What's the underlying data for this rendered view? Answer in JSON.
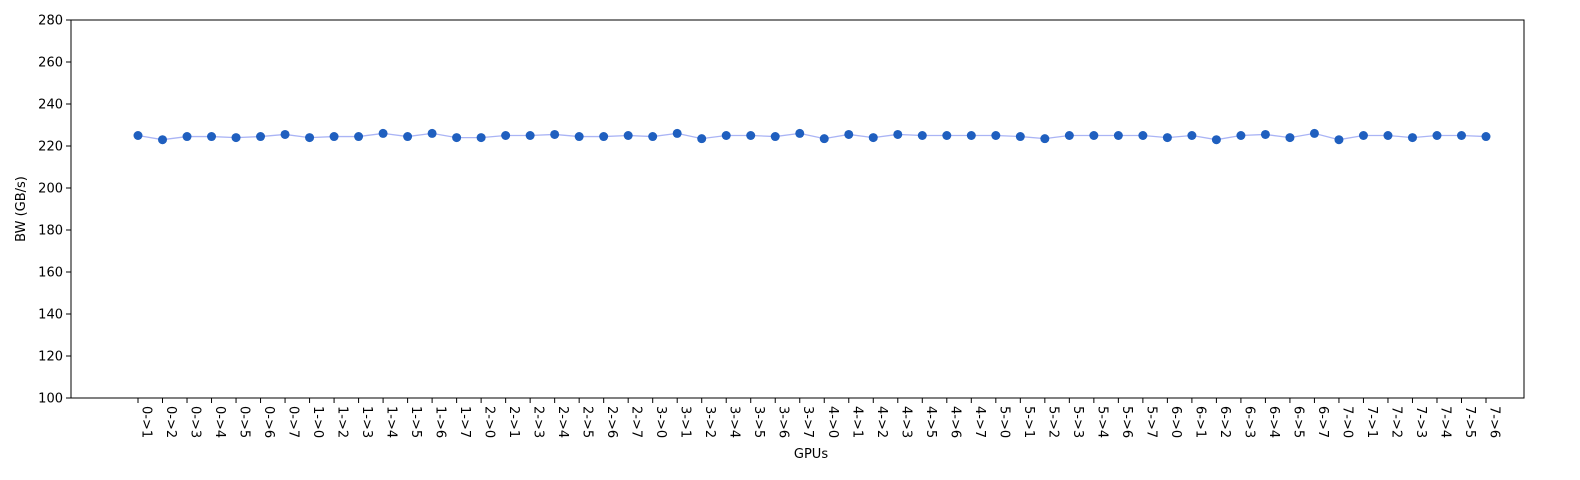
{
  "chart_data": {
    "type": "line",
    "title": "",
    "xlabel": "GPUs",
    "ylabel": "BW (GB/s)",
    "ylim": [
      100,
      280
    ],
    "yticks": [
      100,
      120,
      140,
      160,
      180,
      200,
      220,
      240,
      260,
      280
    ],
    "grid": false,
    "categories": [
      "0->1",
      "0->2",
      "0->3",
      "0->4",
      "0->5",
      "0->6",
      "0->7",
      "1->0",
      "1->2",
      "1->3",
      "1->4",
      "1->5",
      "1->6",
      "1->7",
      "2->0",
      "2->1",
      "2->3",
      "2->4",
      "2->5",
      "2->6",
      "2->7",
      "3->0",
      "3->1",
      "3->2",
      "3->4",
      "3->5",
      "3->6",
      "3->7",
      "4->0",
      "4->1",
      "4->2",
      "4->3",
      "4->5",
      "4->6",
      "4->7",
      "5->0",
      "5->1",
      "5->2",
      "5->3",
      "5->4",
      "5->6",
      "5->7",
      "6->0",
      "6->1",
      "6->2",
      "6->3",
      "6->4",
      "6->5",
      "6->7",
      "7->0",
      "7->1",
      "7->2",
      "7->3",
      "7->4",
      "7->5",
      "7->6"
    ],
    "series": [
      {
        "values": [
          225.0,
          223.0,
          224.5,
          224.5,
          224.0,
          224.5,
          225.5,
          224.0,
          224.5,
          224.5,
          226.0,
          224.5,
          226.0,
          224.0,
          224.0,
          225.0,
          225.0,
          225.5,
          224.5,
          224.5,
          225.0,
          224.5,
          226.0,
          223.5,
          225.0,
          225.0,
          224.5,
          226.0,
          223.5,
          225.5,
          224.0,
          225.5,
          225.0,
          225.0,
          225.0,
          225.0,
          224.5,
          223.5,
          225.0,
          225.0,
          225.0,
          225.0,
          224.0,
          225.0,
          223.0,
          225.0,
          225.5,
          224.0,
          226.0,
          223.0,
          225.0,
          225.0,
          224.0,
          225.0,
          225.0,
          224.5
        ],
        "marker_color": "#1f5fbf",
        "line_color": "#aab4f5"
      }
    ]
  }
}
